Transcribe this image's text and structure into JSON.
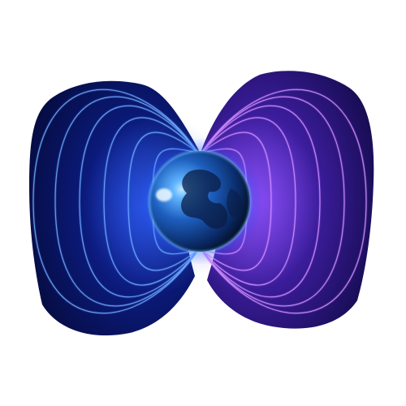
{
  "scene": {
    "background_color": "#ffffff",
    "lobe_left_colors": [
      "#0b1a7a",
      "#0a1256",
      "#050a3a"
    ],
    "lobe_right_colors": [
      "#4b2ab8",
      "#2a1680",
      "#120a48"
    ],
    "field_line_left_color": "#6aa8ff",
    "field_line_right_color": "#d08cff",
    "planet_colors": [
      "#7fc6ff",
      "#1d6fd1",
      "#0a2a66",
      "#020818"
    ],
    "glow_color": "#3aa0ff"
  }
}
